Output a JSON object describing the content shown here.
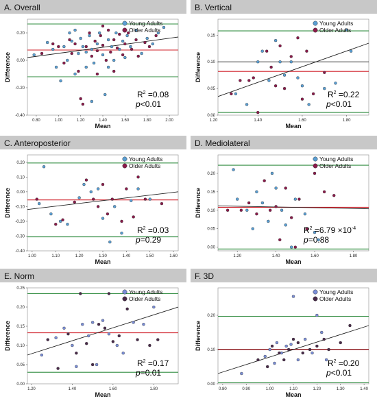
{
  "colors": {
    "young": "#5a9fd4",
    "older": "#8b1a4a",
    "young_norm": "#7b8fd9",
    "older_norm": "#4a2a4a",
    "green": "#2e8b3e",
    "red": "#d0202a",
    "fit": "#222222",
    "header_bg": "#c8c8c8"
  },
  "chart_data": [
    {
      "id": "A",
      "title": "A. Overall",
      "type": "scatter",
      "xlabel": "Mean",
      "ylabel": "Difference",
      "xlim": [
        0.72,
        2.08
      ],
      "ylim": [
        -0.4,
        0.3
      ],
      "xticks": [
        "0.80",
        "1.00",
        "1.20",
        "1.40",
        "1.60",
        "1.80",
        "2.00"
      ],
      "yticks": [
        "-0.40",
        "-0.20",
        "0.00",
        "0.20"
      ],
      "legend": [
        "Young Adults",
        "Older Adults"
      ],
      "green_lines": [
        0.265,
        -0.12
      ],
      "red_line": 0.075,
      "black_line": null,
      "fit": [
        [
          0.72,
          0.02
        ],
        [
          2.08,
          0.17
        ]
      ],
      "r2_base": "R",
      "r2_sup": "2",
      "r2_rest": " =0.08",
      "p_label": "p",
      "p_rest": "<0.01",
      "young": [
        [
          0.78,
          0.04
        ],
        [
          0.9,
          0.13
        ],
        [
          0.95,
          0.08
        ],
        [
          0.98,
          -0.05
        ],
        [
          1.02,
          -0.15
        ],
        [
          1.05,
          0.1
        ],
        [
          1.08,
          0.0
        ],
        [
          1.1,
          0.2
        ],
        [
          1.12,
          0.14
        ],
        [
          1.15,
          -0.1
        ],
        [
          1.18,
          0.05
        ],
        [
          1.2,
          0.16
        ],
        [
          1.22,
          0.1
        ],
        [
          1.25,
          -0.05
        ],
        [
          1.28,
          0.18
        ],
        [
          1.3,
          0.08
        ],
        [
          1.32,
          -0.02
        ],
        [
          1.35,
          0.12
        ],
        [
          1.37,
          0.2
        ],
        [
          1.4,
          0.04
        ],
        [
          1.42,
          -0.25
        ],
        [
          1.45,
          0.15
        ],
        [
          1.48,
          0.1
        ],
        [
          1.5,
          0.0
        ],
        [
          1.52,
          0.2
        ],
        [
          1.55,
          0.08
        ],
        [
          1.58,
          0.14
        ],
        [
          1.6,
          0.02
        ],
        [
          1.62,
          0.18
        ],
        [
          1.65,
          0.1
        ],
        [
          1.7,
          0.22
        ],
        [
          1.75,
          0.05
        ],
        [
          1.8,
          0.16
        ],
        [
          1.85,
          0.12
        ],
        [
          1.9,
          0.2
        ],
        [
          1.95,
          0.24
        ],
        [
          1.3,
          -0.3
        ],
        [
          1.15,
          0.22
        ],
        [
          1.25,
          0.06
        ],
        [
          1.45,
          -0.05
        ]
      ],
      "older": [
        [
          0.85,
          0.05
        ],
        [
          0.95,
          0.12
        ],
        [
          1.0,
          0.1
        ],
        [
          1.05,
          -0.02
        ],
        [
          1.1,
          0.15
        ],
        [
          1.12,
          0.05
        ],
        [
          1.15,
          0.12
        ],
        [
          1.18,
          -0.08
        ],
        [
          1.2,
          -0.28
        ],
        [
          1.22,
          -0.32
        ],
        [
          1.25,
          0.1
        ],
        [
          1.28,
          0.2
        ],
        [
          1.3,
          0.03
        ],
        [
          1.33,
          0.14
        ],
        [
          1.35,
          0.07
        ],
        [
          1.38,
          0.18
        ],
        [
          1.4,
          0.11
        ],
        [
          1.43,
          0.0
        ],
        [
          1.45,
          0.22
        ],
        [
          1.47,
          0.06
        ],
        [
          1.5,
          0.15
        ],
        [
          1.53,
          0.09
        ],
        [
          1.55,
          0.19
        ],
        [
          1.58,
          0.04
        ],
        [
          1.6,
          0.12
        ],
        [
          1.63,
          0.2
        ],
        [
          1.66,
          0.08
        ],
        [
          1.7,
          0.15
        ],
        [
          1.72,
          0.03
        ],
        [
          1.78,
          0.13
        ],
        [
          1.82,
          0.1
        ],
        [
          1.88,
          0.18
        ],
        [
          1.4,
          0.25
        ],
        [
          1.35,
          -0.1
        ],
        [
          1.5,
          -0.08
        ]
      ]
    },
    {
      "id": "B",
      "title": "B. Vertical",
      "type": "scatter",
      "xlabel": "Mean",
      "ylabel": "Difference",
      "xlim": [
        1.22,
        1.9
      ],
      "ylim": [
        0.0,
        0.18
      ],
      "xticks": [
        "1.20",
        "1.40",
        "1.60",
        "1.80"
      ],
      "yticks": [
        "0.00",
        "0.05",
        "0.10",
        "0.15"
      ],
      "legend": [
        "Young Adults",
        "Older Adults"
      ],
      "green_lines": [
        0.158,
        0.005
      ],
      "red_line": 0.082,
      "black_line": 0.1,
      "fit": [
        [
          1.22,
          0.035
        ],
        [
          1.9,
          0.135
        ]
      ],
      "r2_base": "R",
      "r2_sup": "2",
      "r2_rest": " =0.22",
      "p_label": "p",
      "p_rest": "<0.01",
      "young": [
        [
          1.3,
          0.04
        ],
        [
          1.35,
          0.02
        ],
        [
          1.4,
          0.1
        ],
        [
          1.45,
          0.065
        ],
        [
          1.48,
          0.14
        ],
        [
          1.5,
          0.1
        ],
        [
          1.52,
          0.075
        ],
        [
          1.55,
          0.1
        ],
        [
          1.6,
          0.055
        ],
        [
          1.63,
          0.02
        ],
        [
          1.7,
          0.05
        ],
        [
          1.75,
          0.06
        ],
        [
          1.8,
          0.16
        ],
        [
          1.82,
          0.12
        ],
        [
          1.42,
          0.12
        ],
        [
          1.58,
          0.07
        ]
      ],
      "older": [
        [
          1.28,
          0.04
        ],
        [
          1.32,
          0.065
        ],
        [
          1.36,
          0.065
        ],
        [
          1.4,
          0.005
        ],
        [
          1.44,
          0.12
        ],
        [
          1.48,
          0.055
        ],
        [
          1.5,
          0.13
        ],
        [
          1.52,
          0.05
        ],
        [
          1.55,
          0.11
        ],
        [
          1.58,
          0.145
        ],
        [
          1.6,
          0.03
        ],
        [
          1.62,
          0.12
        ],
        [
          1.65,
          0.04
        ],
        [
          1.7,
          0.08
        ],
        [
          1.46,
          0.09
        ],
        [
          1.38,
          0.07
        ]
      ]
    },
    {
      "id": "C",
      "title": "C. Anteroposterior",
      "type": "scatter",
      "xlabel": "Mean",
      "ylabel": "Difference",
      "xlim": [
        0.98,
        1.62
      ],
      "ylim": [
        -0.4,
        0.25
      ],
      "xticks": [
        "1.00",
        "1.10",
        "1.20",
        "1.30",
        "1.40",
        "1.50",
        "1.60"
      ],
      "yticks": [
        "-0.40",
        "-0.30",
        "-0.20",
        "-0.10",
        "0.00",
        "0.10",
        "0.20"
      ],
      "legend": [
        "Young Adults",
        "Older Adults"
      ],
      "green_lines": [
        0.195,
        -0.305
      ],
      "red_line": -0.055,
      "black_line": null,
      "fit": [
        [
          0.98,
          -0.12
        ],
        [
          1.62,
          0.0
        ]
      ],
      "r2_base": "R",
      "r2_sup": "2",
      "r2_rest": " =0.03",
      "p_label": "p",
      "p_rest": "=0.29",
      "young": [
        [
          1.03,
          -0.08
        ],
        [
          1.05,
          0.17
        ],
        [
          1.08,
          -0.15
        ],
        [
          1.12,
          -0.2
        ],
        [
          1.15,
          -0.22
        ],
        [
          1.2,
          -0.04
        ],
        [
          1.22,
          0.05
        ],
        [
          1.25,
          0.0
        ],
        [
          1.28,
          0.02
        ],
        [
          1.3,
          -0.18
        ],
        [
          1.33,
          -0.34
        ],
        [
          1.35,
          -0.1
        ],
        [
          1.38,
          -0.28
        ],
        [
          1.42,
          -0.06
        ],
        [
          1.45,
          0.02
        ],
        [
          1.5,
          -0.05
        ]
      ],
      "older": [
        [
          1.02,
          -0.05
        ],
        [
          1.1,
          -0.22
        ],
        [
          1.13,
          -0.19
        ],
        [
          1.18,
          -0.07
        ],
        [
          1.23,
          0.08
        ],
        [
          1.26,
          -0.05
        ],
        [
          1.28,
          -0.1
        ],
        [
          1.3,
          0.05
        ],
        [
          1.32,
          -0.15
        ],
        [
          1.34,
          -0.05
        ],
        [
          1.38,
          -0.2
        ],
        [
          1.4,
          0.02
        ],
        [
          1.43,
          -0.17
        ],
        [
          1.45,
          0.1
        ],
        [
          1.48,
          -0.05
        ],
        [
          1.55,
          -0.08
        ]
      ]
    },
    {
      "id": "D",
      "title": "D. Mediolateral",
      "type": "scatter",
      "xlabel": "Mean",
      "ylabel": "Difference",
      "xlim": [
        1.1,
        1.88
      ],
      "ylim": [
        -0.01,
        0.25
      ],
      "xticks": [
        "1.20",
        "1.40",
        "1.60",
        "1.80"
      ],
      "yticks": [
        "0.00",
        "0.05",
        "0.10",
        "0.15",
        "0.20"
      ],
      "legend": [
        "Young Adults",
        "Older Adults"
      ],
      "green_lines": [
        0.222,
        -0.005
      ],
      "red_line": 0.108,
      "black_line": null,
      "fit": [
        [
          1.1,
          0.112
        ],
        [
          1.88,
          0.104
        ]
      ],
      "r2_base": "R",
      "r2_sup": "2",
      "r2_rest": " =6.79 ×10",
      "r2_exp": "-4",
      "p_label": "p",
      "p_rest": "=0.88",
      "young": [
        [
          1.18,
          0.21
        ],
        [
          1.2,
          0.13
        ],
        [
          1.25,
          0.1
        ],
        [
          1.3,
          0.15
        ],
        [
          1.33,
          0.12
        ],
        [
          1.36,
          0.07
        ],
        [
          1.4,
          0.16
        ],
        [
          1.43,
          0.1
        ],
        [
          1.45,
          0.06
        ],
        [
          1.5,
          0.13
        ],
        [
          1.55,
          0.09
        ],
        [
          1.6,
          0.04
        ],
        [
          1.62,
          0.02
        ],
        [
          1.28,
          0.05
        ],
        [
          1.38,
          0.2
        ],
        [
          1.48,
          0.0
        ]
      ],
      "older": [
        [
          1.15,
          0.1
        ],
        [
          1.22,
          0.1
        ],
        [
          1.26,
          0.12
        ],
        [
          1.3,
          0.09
        ],
        [
          1.34,
          0.18
        ],
        [
          1.37,
          0.1
        ],
        [
          1.4,
          0.11
        ],
        [
          1.42,
          0.02
        ],
        [
          1.45,
          0.16
        ],
        [
          1.48,
          0.08
        ],
        [
          1.52,
          0.13
        ],
        [
          1.56,
          0.05
        ],
        [
          1.6,
          0.2
        ],
        [
          1.65,
          0.15
        ],
        [
          1.7,
          0.14
        ],
        [
          1.5,
          0.0
        ]
      ]
    },
    {
      "id": "E",
      "title": "E. Norm",
      "type": "scatter",
      "xlabel": "Mean",
      "ylabel": "Difference",
      "xlim": [
        1.18,
        1.92
      ],
      "ylim": [
        0.0,
        0.25
      ],
      "xticks": [
        "1.20",
        "1.40",
        "1.60",
        "1.80"
      ],
      "yticks": [
        "0.00",
        "0.05",
        "0.10",
        "0.15",
        "0.20",
        "0.25"
      ],
      "legend": [
        "Young Adults",
        "Older Adults"
      ],
      "green_lines": [
        0.235,
        0.03
      ],
      "red_line": 0.133,
      "black_line": null,
      "fit": [
        [
          1.18,
          0.075
        ],
        [
          1.92,
          0.2
        ]
      ],
      "r2_base": "R",
      "r2_sup": "2",
      "r2_rest": " =0.17",
      "p_label": "p",
      "p_rest": "=0.01",
      "young": [
        [
          1.25,
          0.075
        ],
        [
          1.32,
          0.12
        ],
        [
          1.36,
          0.145
        ],
        [
          1.4,
          0.1
        ],
        [
          1.45,
          0.155
        ],
        [
          1.48,
          0.125
        ],
        [
          1.5,
          0.16
        ],
        [
          1.52,
          0.05
        ],
        [
          1.55,
          0.165
        ],
        [
          1.58,
          0.13
        ],
        [
          1.62,
          0.1
        ],
        [
          1.65,
          0.08
        ],
        [
          1.7,
          0.16
        ],
        [
          1.75,
          0.155
        ],
        [
          1.8,
          0.2
        ],
        [
          1.42,
          0.045
        ]
      ],
      "older": [
        [
          1.28,
          0.115
        ],
        [
          1.33,
          0.04
        ],
        [
          1.38,
          0.13
        ],
        [
          1.42,
          0.08
        ],
        [
          1.44,
          0.235
        ],
        [
          1.47,
          0.105
        ],
        [
          1.5,
          0.05
        ],
        [
          1.53,
          0.155
        ],
        [
          1.56,
          0.145
        ],
        [
          1.6,
          0.11
        ],
        [
          1.63,
          0.125
        ],
        [
          1.67,
          0.195
        ],
        [
          1.72,
          0.115
        ],
        [
          1.78,
          0.1
        ],
        [
          1.82,
          0.115
        ],
        [
          1.58,
          0.235
        ]
      ]
    },
    {
      "id": "F",
      "title": "F. 3D",
      "type": "scatter",
      "xlabel": "Mean",
      "ylabel": "Difference",
      "xlim": [
        0.78,
        1.42
      ],
      "ylim": [
        0.0,
        0.28
      ],
      "xticks": [
        "0.80",
        "0.90",
        "1.00",
        "1.10",
        "1.20",
        "1.30",
        "1.40"
      ],
      "yticks": [
        "0.00",
        "0.10",
        "0.20"
      ],
      "legend": [
        "Young Adults",
        "Older Adults"
      ],
      "green_lines": [
        0.197,
        0.003
      ],
      "red_line": 0.1,
      "black_line": 0.101,
      "fit": [
        [
          0.78,
          0.03
        ],
        [
          1.42,
          0.17
        ]
      ],
      "r2_base": "R",
      "r2_sup": "2",
      "r2_rest": " =0.20",
      "p_label": "p",
      "p_rest": "<0.01",
      "young": [
        [
          0.88,
          0.03
        ],
        [
          0.98,
          0.08
        ],
        [
          1.0,
          0.1
        ],
        [
          1.02,
          0.06
        ],
        [
          1.05,
          0.09
        ],
        [
          1.07,
          0.11
        ],
        [
          1.1,
          0.255
        ],
        [
          1.12,
          0.07
        ],
        [
          1.15,
          0.13
        ],
        [
          1.18,
          0.09
        ],
        [
          1.2,
          0.2
        ],
        [
          1.22,
          0.15
        ],
        [
          1.24,
          0.07
        ],
        [
          1.03,
          0.12
        ],
        [
          1.09,
          0.115
        ]
      ],
      "older": [
        [
          0.95,
          0.07
        ],
        [
          0.99,
          0.05
        ],
        [
          1.01,
          0.11
        ],
        [
          1.04,
          0.09
        ],
        [
          1.06,
          0.07
        ],
        [
          1.08,
          0.1
        ],
        [
          1.1,
          0.13
        ],
        [
          1.12,
          0.12
        ],
        [
          1.14,
          0.09
        ],
        [
          1.17,
          0.1
        ],
        [
          1.2,
          0.11
        ],
        [
          1.23,
          0.13
        ],
        [
          1.25,
          0.1
        ],
        [
          1.34,
          0.17
        ],
        [
          1.3,
          0.12
        ]
      ]
    }
  ]
}
